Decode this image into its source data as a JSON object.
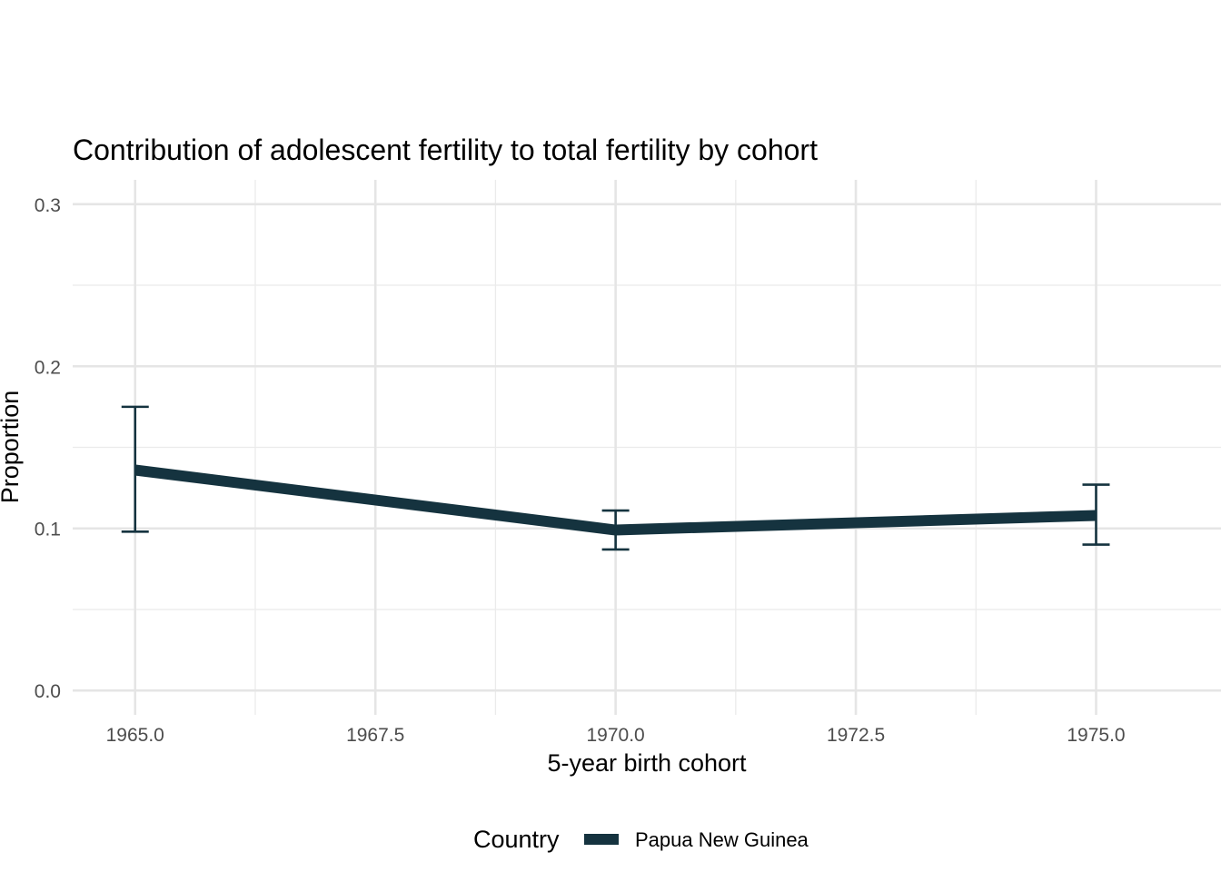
{
  "chart_data": {
    "type": "line",
    "title": "Contribution of adolescent fertility to total fertility by cohort",
    "xlabel": "5-year birth cohort",
    "ylabel": "Proportion",
    "xlim": [
      1964.35,
      1976.3
    ],
    "ylim": [
      -0.015,
      0.315
    ],
    "x_ticks": [
      1965.0,
      1967.5,
      1970.0,
      1972.5,
      1975.0
    ],
    "x_tick_labels": [
      "1965.0",
      "1967.5",
      "1970.0",
      "1972.5",
      "1975.0"
    ],
    "y_ticks": [
      0.0,
      0.1,
      0.2,
      0.3
    ],
    "y_tick_labels": [
      "0.0",
      "0.1",
      "0.2",
      "0.3"
    ],
    "grid": true,
    "legend": {
      "title": "Country",
      "position": "bottom"
    },
    "series": [
      {
        "name": "Papua New Guinea",
        "color": "#15333f",
        "x": [
          1965,
          1970,
          1975
        ],
        "y": [
          0.136,
          0.099,
          0.108
        ],
        "error_low": [
          0.098,
          0.087,
          0.09
        ],
        "error_high": [
          0.175,
          0.111,
          0.127
        ]
      }
    ]
  }
}
